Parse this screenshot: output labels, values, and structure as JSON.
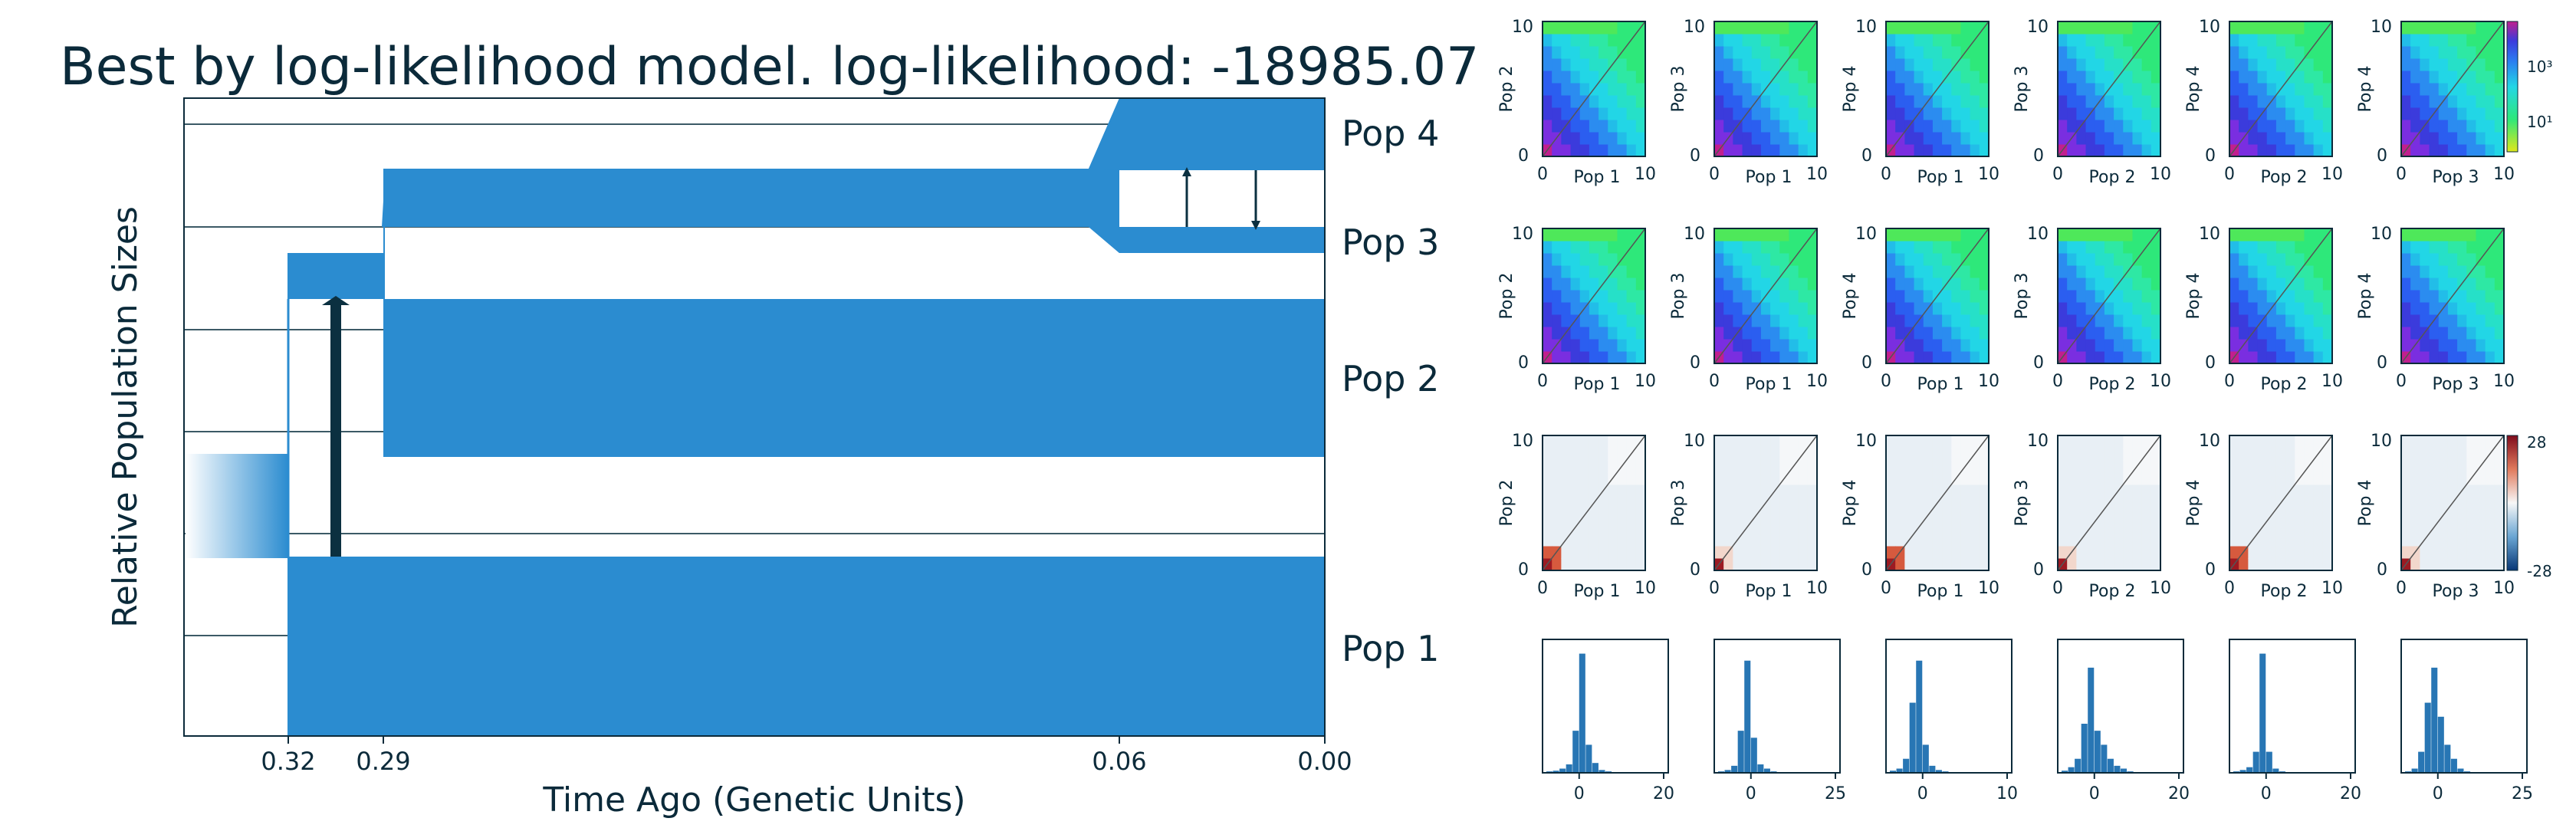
{
  "title": "Best by log-likelihood model. log-likelihood: -18985.07",
  "colors": {
    "population_fill": "#2b8cd0",
    "migration_arrow": "#0b3040",
    "text": "#0b2a3a",
    "hist_bar": "#2876b4",
    "guide_line": "#3c5a66"
  },
  "chart_data": [
    {
      "type": "demographic_model",
      "title": "Best by log-likelihood model. log-likelihood: -18985.07",
      "xlabel": "Time Ago (Genetic Units)",
      "ylabel": "Relative Population Sizes",
      "x_ticks": [
        "0.32",
        "0.29",
        "0.06",
        "0.00"
      ],
      "populations": [
        "Pop 4",
        "Pop 3",
        "Pop 2",
        "Pop 1"
      ],
      "split_times": [
        0.32,
        0.29,
        0.06
      ],
      "migrations": [
        {
          "from": "Pop 1",
          "to": "Pop 2/3 ancestor",
          "time_span": "0.32–0.29"
        },
        {
          "from": "Pop 3",
          "to": "Pop 4",
          "time_span": "0.06–0.00"
        },
        {
          "from": "Pop 4",
          "to": "Pop 3",
          "time_span": "0.06–0.00"
        }
      ]
    },
    {
      "type": "heatmap",
      "description": "2D SFS panels, rows 1-2 (model / data), colour scale log",
      "panels": [
        {
          "xlabel": "Pop 1",
          "ylabel": "Pop 2"
        },
        {
          "xlabel": "Pop 1",
          "ylabel": "Pop 3"
        },
        {
          "xlabel": "Pop 1",
          "ylabel": "Pop 4"
        },
        {
          "xlabel": "Pop 2",
          "ylabel": "Pop 3"
        },
        {
          "xlabel": "Pop 2",
          "ylabel": "Pop 4"
        },
        {
          "xlabel": "Pop 3",
          "ylabel": "Pop 4"
        }
      ],
      "axis_ticks": [
        "0",
        "10"
      ],
      "colorbar_ticks": [
        "10³",
        "10¹"
      ]
    },
    {
      "type": "heatmap",
      "description": "residual panels",
      "colorbar_ticks": [
        "28",
        "-28"
      ],
      "axis_ticks": [
        "0",
        "10"
      ]
    },
    {
      "type": "bar",
      "description": "residual histograms",
      "x_ticks": [
        [
          "0",
          "20"
        ],
        [
          "0",
          "25"
        ],
        [
          "0",
          "10"
        ],
        [
          "0",
          "20"
        ],
        [
          "0",
          "20"
        ],
        [
          "0",
          "25"
        ]
      ]
    }
  ]
}
